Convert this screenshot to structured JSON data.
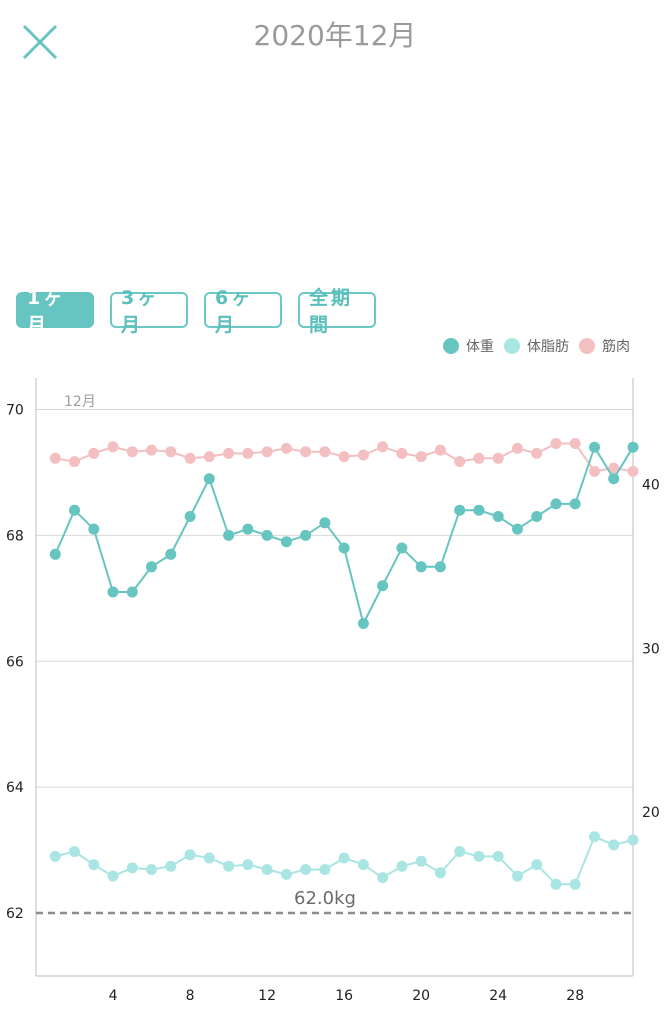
{
  "header": {
    "title": "2020年12月",
    "close_icon": "close-icon"
  },
  "range_tabs": [
    {
      "label": "1ヶ月",
      "active": true
    },
    {
      "label": "3ヶ月",
      "active": false
    },
    {
      "label": "6ヶ月",
      "active": false
    },
    {
      "label": "全期間",
      "active": false
    }
  ],
  "colors": {
    "weight": "#66c5c0",
    "body_fat": "#a9e6e3",
    "muscle": "#f4bfc1",
    "accent": "#66c5c0"
  },
  "chart_data": {
    "type": "line",
    "month_label": "12月",
    "target_label": "62.0kg",
    "target_value": 62.0,
    "x": [
      1,
      2,
      3,
      4,
      5,
      6,
      7,
      8,
      9,
      10,
      11,
      12,
      13,
      14,
      15,
      16,
      17,
      18,
      19,
      20,
      21,
      22,
      23,
      24,
      25,
      26,
      27,
      28,
      29,
      30,
      31
    ],
    "x_ticks": [
      4,
      8,
      12,
      16,
      20,
      24,
      28
    ],
    "xlim": [
      0,
      31
    ],
    "y_left": {
      "ticks": [
        62,
        64,
        66,
        68,
        70
      ],
      "lim": [
        61,
        70.5
      ]
    },
    "y_right": {
      "ticks": [
        20,
        30,
        40
      ],
      "lim": [
        10,
        46.5
      ]
    },
    "series": [
      {
        "name": "体重",
        "axis": "left",
        "values": [
          67.7,
          68.4,
          68.1,
          67.1,
          67.1,
          67.5,
          67.7,
          68.3,
          68.9,
          68.0,
          68.1,
          68.0,
          67.9,
          68.0,
          68.2,
          67.8,
          66.6,
          67.2,
          67.8,
          67.5,
          67.5,
          68.4,
          68.4,
          68.3,
          68.1,
          68.3,
          68.5,
          68.5,
          69.4,
          68.9,
          69.4
        ]
      },
      {
        "name": "体脂肪",
        "axis": "right",
        "values": [
          17.3,
          17.6,
          16.8,
          16.1,
          16.6,
          16.5,
          16.7,
          17.4,
          17.2,
          16.7,
          16.8,
          16.5,
          16.2,
          16.5,
          16.5,
          17.2,
          16.8,
          16.0,
          16.7,
          17.0,
          16.3,
          17.6,
          17.3,
          17.3,
          16.1,
          16.8,
          15.6,
          15.6,
          18.5,
          18.0,
          18.3
        ]
      },
      {
        "name": "筋肉",
        "axis": "right",
        "values": [
          41.6,
          41.4,
          41.9,
          42.3,
          42.0,
          42.1,
          42.0,
          41.6,
          41.7,
          41.9,
          41.9,
          42.0,
          42.2,
          42.0,
          42.0,
          41.7,
          41.8,
          42.3,
          41.9,
          41.7,
          42.1,
          41.4,
          41.6,
          41.6,
          42.2,
          41.9,
          42.5,
          42.5,
          40.8,
          41.0,
          40.8
        ]
      }
    ]
  }
}
